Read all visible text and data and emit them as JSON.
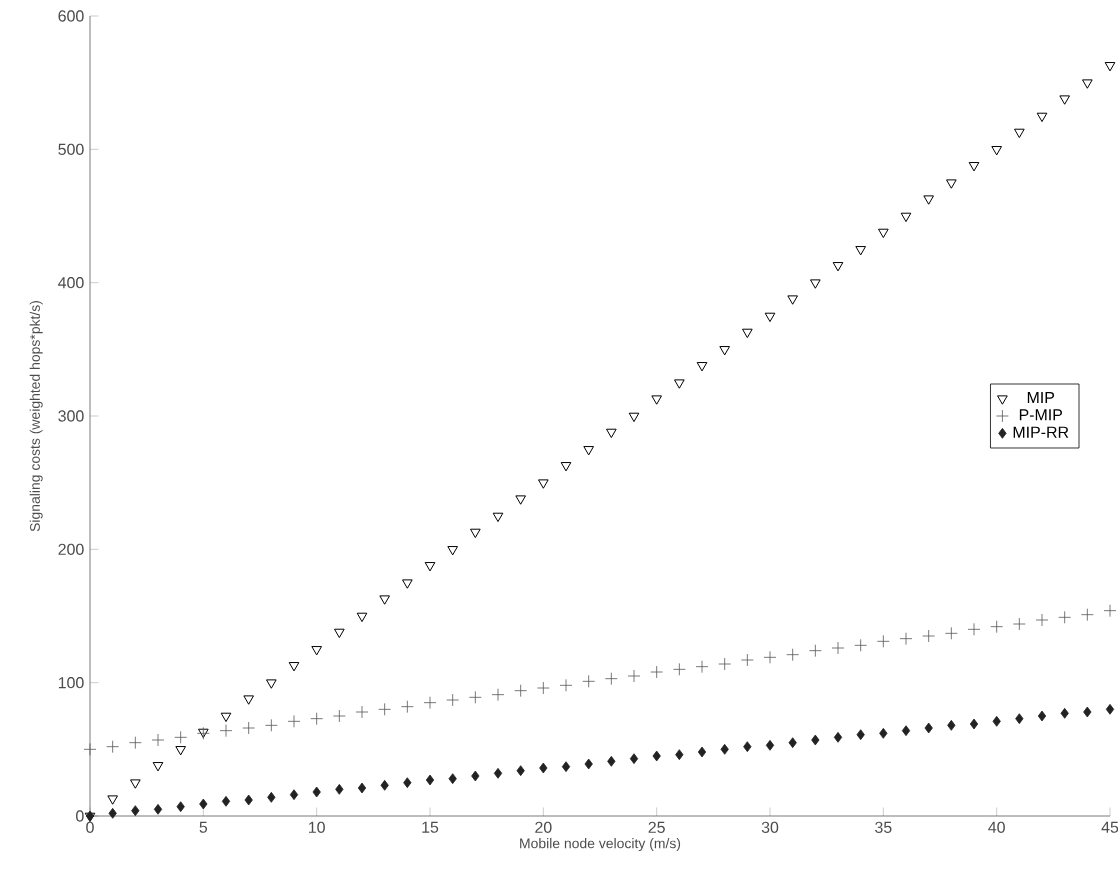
{
  "chart_data": {
    "type": "scatter",
    "xlabel": "Mobile node velocity (m/s)",
    "ylabel": "Signaling costs (weighted hops*pkt/s)",
    "x": [
      0,
      1,
      2,
      3,
      4,
      5,
      6,
      7,
      8,
      9,
      10,
      11,
      12,
      13,
      14,
      15,
      16,
      17,
      18,
      19,
      20,
      21,
      22,
      23,
      24,
      25,
      26,
      27,
      28,
      29,
      30,
      31,
      32,
      33,
      34,
      35,
      36,
      37,
      38,
      39,
      40,
      41,
      42,
      43,
      44,
      45
    ],
    "series": [
      {
        "name": "MIP",
        "color": "#000000",
        "marker": "triangle",
        "values": [
          0,
          13,
          25,
          38,
          50,
          63,
          75,
          88,
          100,
          113,
          125,
          138,
          150,
          163,
          175,
          188,
          200,
          213,
          225,
          238,
          250,
          263,
          275,
          288,
          300,
          313,
          325,
          338,
          350,
          363,
          375,
          388,
          400,
          413,
          425,
          438,
          450,
          463,
          475,
          488,
          500,
          513,
          525,
          538,
          550,
          563
        ]
      },
      {
        "name": "P-MIP",
        "color": "#555555",
        "marker": "cross",
        "values": [
          50,
          52,
          55,
          57,
          59,
          62,
          64,
          66,
          68,
          71,
          73,
          75,
          78,
          80,
          82,
          85,
          87,
          89,
          91,
          94,
          96,
          98,
          101,
          103,
          105,
          108,
          110,
          112,
          114,
          117,
          119,
          121,
          124,
          126,
          128,
          131,
          133,
          135,
          137,
          140,
          142,
          144,
          147,
          149,
          151,
          154
        ]
      },
      {
        "name": "MIP-RR",
        "color": "#222222",
        "marker": "diamond",
        "values": [
          0,
          2,
          4,
          5,
          7,
          9,
          11,
          12,
          14,
          16,
          18,
          20,
          21,
          23,
          25,
          27,
          28,
          30,
          32,
          34,
          36,
          37,
          39,
          41,
          43,
          45,
          46,
          48,
          50,
          52,
          53,
          55,
          57,
          59,
          61,
          62,
          64,
          66,
          68,
          69,
          71,
          73,
          75,
          77,
          78,
          80
        ]
      }
    ],
    "xlim": [
      0,
      45
    ],
    "ylim": [
      0,
      600
    ],
    "xticks": [
      0,
      5,
      10,
      15,
      20,
      25,
      30,
      35,
      40,
      45
    ],
    "yticks": [
      0,
      100,
      200,
      300,
      400,
      500,
      600
    ],
    "legend": "right",
    "grid": false
  }
}
